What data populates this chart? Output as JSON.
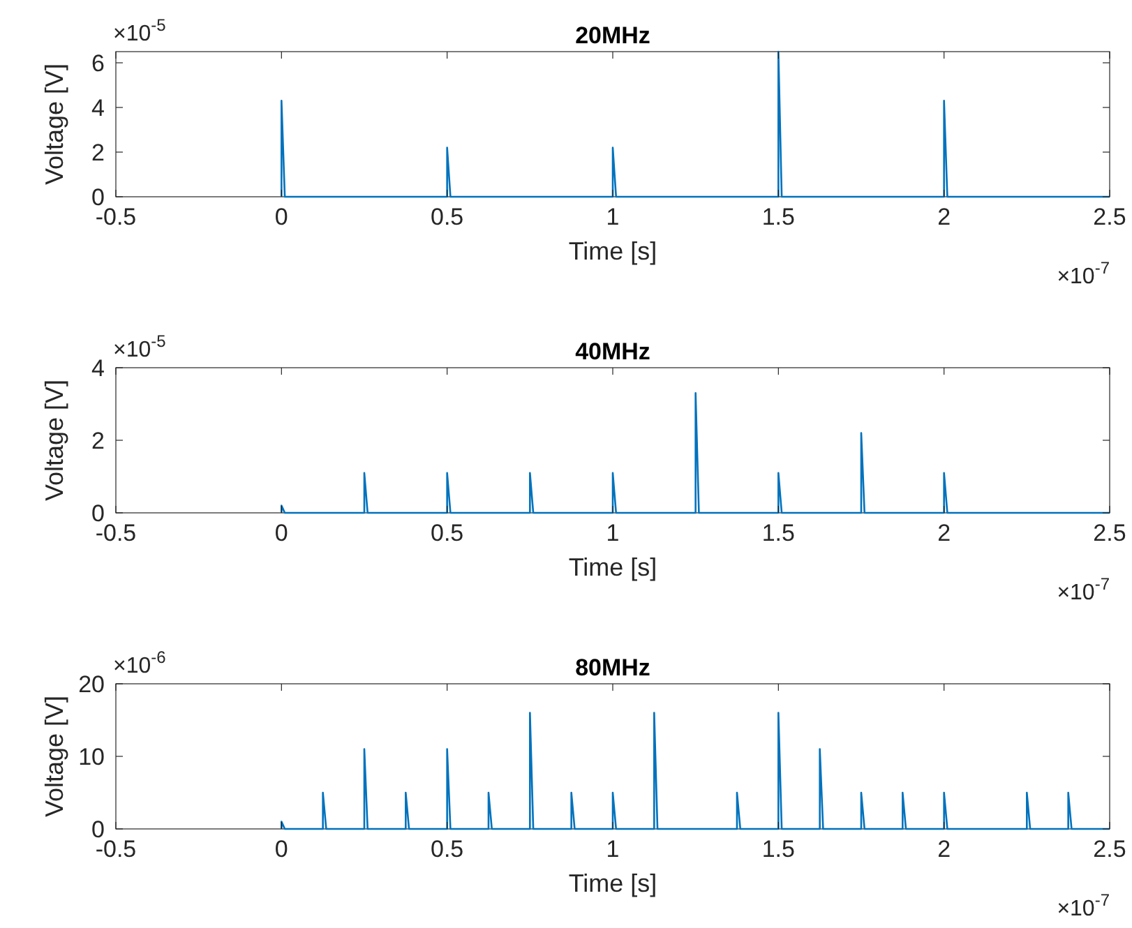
{
  "chart_data": [
    {
      "type": "line",
      "title": "20MHz",
      "xlabel": "Time [s]",
      "ylabel": "Voltage [V]",
      "annotations": [
        "×10$^{-5}$",
        "×10$^{-7}$"
      ],
      "xlim": [
        -0.5,
        2.5
      ],
      "xticks": [
        -0.5,
        0,
        0.5,
        1,
        1.5,
        2,
        2.5
      ],
      "ylim": [
        0,
        6.5
      ],
      "yticks": [
        0,
        2,
        4,
        6
      ],
      "series": [
        {
          "color": "#0072bd",
          "x": [
            0,
            0,
            0.01,
            0.5,
            0.5,
            0.51,
            1,
            1,
            1.01,
            1.5,
            1.5,
            1.51,
            2,
            2,
            2.01,
            2.5
          ],
          "values": [
            0,
            4.3,
            0,
            0,
            2.2,
            0,
            0,
            2.2,
            0,
            0,
            6.5,
            0,
            0,
            4.3,
            0,
            0
          ]
        }
      ]
    },
    {
      "type": "line",
      "title": "40MHz",
      "xlabel": "Time [s]",
      "ylabel": "Voltage [V]",
      "annotations": [
        "×10$^{-5}$",
        "×10$^{-7}$"
      ],
      "xlim": [
        -0.5,
        2.5
      ],
      "xticks": [
        -0.5,
        0,
        0.5,
        1,
        1.5,
        2,
        2.5
      ],
      "ylim": [
        0,
        4
      ],
      "yticks": [
        0,
        2,
        4
      ],
      "series": [
        {
          "color": "#0072bd",
          "x": [
            0,
            0,
            0.01,
            0.25,
            0.25,
            0.26,
            0.5,
            0.5,
            0.51,
            0.75,
            0.75,
            0.76,
            1,
            1,
            1.01,
            1.25,
            1.25,
            1.26,
            1.5,
            1.5,
            1.51,
            1.75,
            1.75,
            1.76,
            2,
            2,
            2.01,
            2.5
          ],
          "values": [
            0,
            0.2,
            0,
            0,
            1.1,
            0,
            0,
            1.1,
            0,
            0,
            1.1,
            0,
            0,
            1.1,
            0,
            0,
            3.3,
            0,
            0,
            1.1,
            0,
            0,
            2.2,
            0,
            0,
            1.1,
            0,
            0
          ]
        }
      ]
    },
    {
      "type": "line",
      "title": "80MHz",
      "xlabel": "Time [s]",
      "ylabel": "Voltage [V]",
      "annotations": [
        "×10$^{-6}$",
        "×10$^{-7}$"
      ],
      "xlim": [
        -0.5,
        2.5
      ],
      "xticks": [
        -0.5,
        0,
        0.5,
        1,
        1.5,
        2,
        2.5
      ],
      "ylim": [
        0,
        20
      ],
      "yticks": [
        0,
        10,
        20
      ],
      "series": [
        {
          "color": "#0072bd",
          "x": [
            0,
            0,
            0.01,
            0.125,
            0.125,
            0.135,
            0.25,
            0.25,
            0.26,
            0.375,
            0.375,
            0.385,
            0.5,
            0.5,
            0.51,
            0.625,
            0.625,
            0.635,
            0.75,
            0.75,
            0.76,
            0.875,
            0.875,
            0.885,
            1,
            1,
            1.01,
            1.125,
            1.125,
            1.135,
            1.375,
            1.375,
            1.385,
            1.5,
            1.5,
            1.51,
            1.625,
            1.625,
            1.635,
            1.75,
            1.75,
            1.76,
            1.875,
            1.875,
            1.885,
            2,
            2,
            2.01,
            2.25,
            2.25,
            2.26,
            2.375,
            2.375,
            2.385,
            2.5
          ],
          "values": [
            0,
            1,
            0,
            0,
            5,
            0,
            0,
            11,
            0,
            0,
            5,
            0,
            0,
            11,
            0,
            0,
            5,
            0,
            0,
            16,
            0,
            0,
            5,
            0,
            0,
            5,
            0,
            0,
            16,
            0,
            0,
            5,
            0,
            0,
            16,
            0,
            0,
            11,
            0,
            0,
            5,
            0,
            0,
            5,
            0,
            0,
            5,
            0,
            0,
            5,
            0,
            0,
            5,
            0,
            0
          ]
        }
      ]
    }
  ]
}
